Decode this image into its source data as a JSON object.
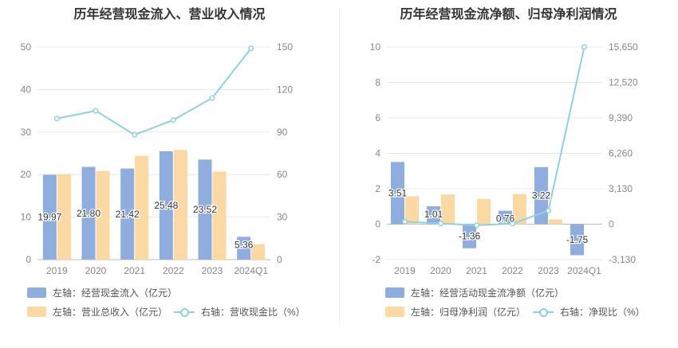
{
  "colors": {
    "bar1": "#8faedf",
    "bar2": "#fcd9a2",
    "line": "#8dd3dd",
    "grid": "#e6e8f0",
    "axis": "#888888"
  },
  "chart_data": [
    {
      "type": "bar",
      "title": "历年经营现金流入、营业收入情况",
      "categories": [
        "2019",
        "2020",
        "2021",
        "2022",
        "2023",
        "2024Q1"
      ],
      "series": [
        {
          "name": "左轴：经营现金流入（亿元）",
          "axis": "left",
          "kind": "bar",
          "values": [
            19.97,
            21.8,
            21.42,
            25.48,
            23.52,
            5.36
          ],
          "labels": [
            "19.97",
            "21.80",
            "21.42",
            "25.48",
            "23.52",
            "5.36"
          ]
        },
        {
          "name": "左轴：营业总收入（亿元）",
          "axis": "left",
          "kind": "bar",
          "values": [
            20.1,
            20.8,
            24.4,
            25.8,
            20.7,
            3.6
          ]
        },
        {
          "name": "右轴：营收现金比（%）",
          "axis": "right",
          "kind": "line",
          "values": [
            99.5,
            105,
            88,
            98.5,
            114,
            149
          ]
        }
      ],
      "yleft": {
        "min": 0,
        "max": 50,
        "ticks": [
          "0",
          "10",
          "20",
          "30",
          "40",
          "50"
        ]
      },
      "yright": {
        "min": 0,
        "max": 150,
        "ticks": [
          "0",
          "30",
          "60",
          "90",
          "120",
          "150"
        ]
      }
    },
    {
      "type": "bar",
      "title": "历年经营现金流净额、归母净利润情况",
      "categories": [
        "2019",
        "2020",
        "2021",
        "2022",
        "2023",
        "2024Q1"
      ],
      "series": [
        {
          "name": "左轴：经营活动现金流净额（亿元）",
          "axis": "left",
          "kind": "bar",
          "values": [
            3.51,
            1.01,
            -1.36,
            0.76,
            3.22,
            -1.75
          ],
          "labels": [
            "3.51",
            "1.01",
            "-1.36",
            "0.76",
            "3.22",
            "-1.75"
          ]
        },
        {
          "name": "左轴：归母净利润（亿元）",
          "axis": "left",
          "kind": "bar",
          "values": [
            1.58,
            1.68,
            1.42,
            1.7,
            0.27,
            0.0
          ]
        },
        {
          "name": "右轴：净现比（%）",
          "axis": "right",
          "kind": "line",
          "values": [
            220,
            60,
            -95,
            45,
            1190,
            15650
          ]
        }
      ],
      "yleft": {
        "min": -2,
        "max": 10,
        "ticks": [
          "-2",
          "0",
          "2",
          "4",
          "6",
          "8",
          "10"
        ]
      },
      "yright": {
        "min": -3130,
        "max": 15650,
        "ticks": [
          "-3,130",
          "0",
          "3,130",
          "6,260",
          "9,390",
          "12,520",
          "15,650"
        ]
      }
    }
  ]
}
